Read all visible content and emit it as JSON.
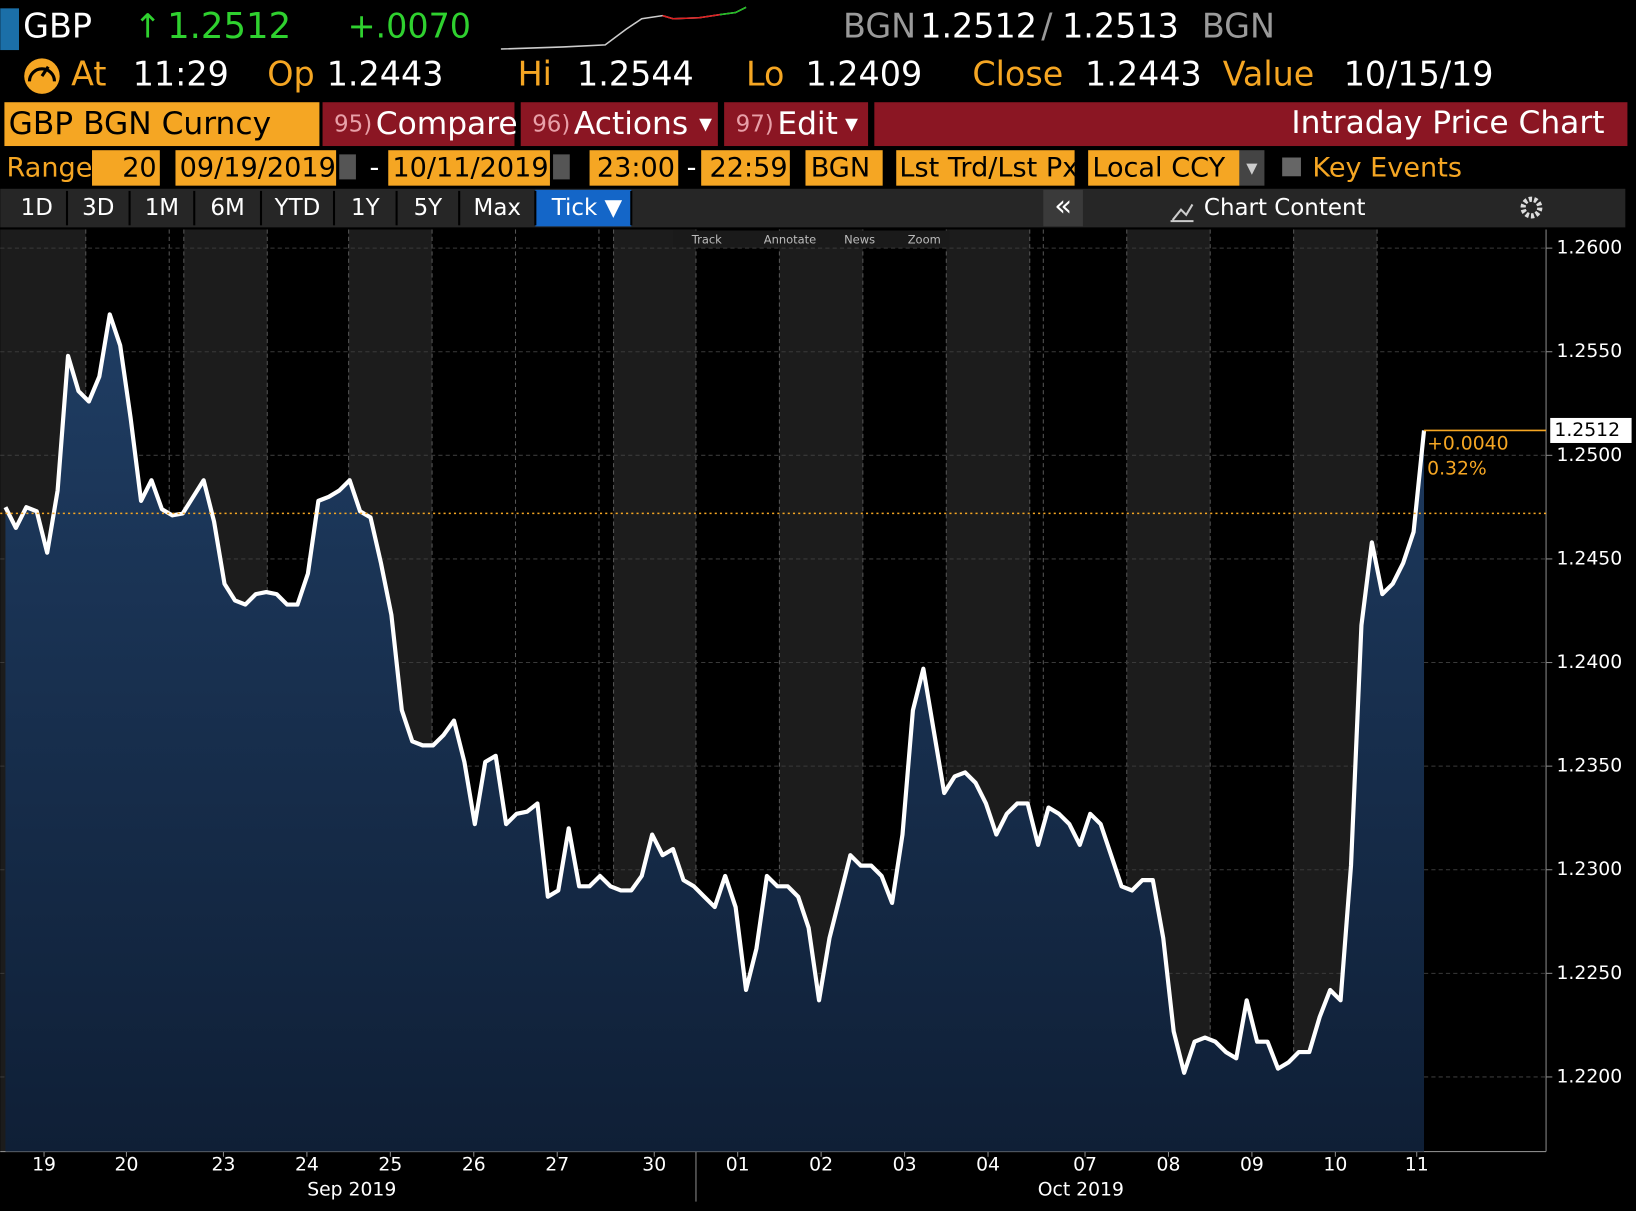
{
  "header": {
    "ticker": "GBP",
    "arrow": "↑",
    "last": "1.2512",
    "change": "+.0070",
    "bid_source": "BGN",
    "bid": "1.2512",
    "separator": "/",
    "ask": "1.2513",
    "ask_source": "BGN"
  },
  "quote": {
    "at_label": "At",
    "time": "11:29",
    "open_label": "Op",
    "open": "1.2443",
    "high_label": "Hi",
    "high": "1.2544",
    "low_label": "Lo",
    "low": "1.2409",
    "close_label": "Close",
    "close": "1.2443",
    "value_label": "Value",
    "value_date": "10/15/19"
  },
  "toolbar": {
    "security": "GBP BGN Curncy",
    "buttons": [
      {
        "number": "95)",
        "label": "Compare"
      },
      {
        "number": "96)",
        "label": "Actions"
      },
      {
        "number": "97)",
        "label": "Edit"
      }
    ],
    "title": "Intraday Price Chart"
  },
  "range": {
    "label": "Range",
    "days": "20",
    "start": "09/19/2019",
    "dash": "-",
    "end": "10/11/2019",
    "start_time": "23:00",
    "end_time": "22:59",
    "source": "BGN",
    "field": "Lst Trd/Lst Px",
    "currency": "Local CCY",
    "key_events": "Key Events"
  },
  "periods": [
    "1D",
    "3D",
    "1M",
    "6M",
    "YTD",
    "1Y",
    "5Y",
    "Max",
    "Tick ▼"
  ],
  "chart_menu": {
    "collapse": "«",
    "content": "Chart Content"
  },
  "tools": [
    "Track",
    "Annotate",
    "News",
    "Zoom"
  ],
  "chart_data": {
    "type": "line",
    "series": [
      {
        "name": "GBP BGN Curncy",
        "color": "#ffffff",
        "values": [
          1.2475,
          1.2465,
          1.2475,
          1.2473,
          1.2453,
          1.2483,
          1.2548,
          1.2531,
          1.2526,
          1.2538,
          1.2568,
          1.2553,
          1.2518,
          1.2478,
          1.2488,
          1.2474,
          1.2471,
          1.2472,
          1.248,
          1.2488,
          1.2468,
          1.2438,
          1.243,
          1.2428,
          1.2433,
          1.2434,
          1.2433,
          1.2428,
          1.2428,
          1.2443,
          1.2478,
          1.248,
          1.2483,
          1.2488,
          1.2473,
          1.247,
          1.2448,
          1.2423,
          1.2377,
          1.2362,
          1.236,
          1.236,
          1.2365,
          1.2372,
          1.2352,
          1.2322,
          1.2352,
          1.2355,
          1.2322,
          1.2327,
          1.2328,
          1.2332,
          1.2287,
          1.229,
          1.232,
          1.2292,
          1.2292,
          1.2297,
          1.2292,
          1.229,
          1.229,
          1.2297,
          1.2317,
          1.2307,
          1.231,
          1.2295,
          1.2292,
          1.2287,
          1.2282,
          1.2297,
          1.2282,
          1.2242,
          1.2262,
          1.2297,
          1.2292,
          1.2292,
          1.2287,
          1.2272,
          1.2237,
          1.2267,
          1.2287,
          1.2307,
          1.2302,
          1.2302,
          1.2297,
          1.2284,
          1.2317,
          1.2377,
          1.2397,
          1.2367,
          1.2337,
          1.2345,
          1.2347,
          1.2342,
          1.2332,
          1.2317,
          1.2327,
          1.2332,
          1.2332,
          1.2312,
          1.233,
          1.2327,
          1.2322,
          1.2312,
          1.2327,
          1.2322,
          1.2307,
          1.2292,
          1.229,
          1.2295,
          1.2295,
          1.2267,
          1.2222,
          1.2202,
          1.2217,
          1.2219,
          1.2217,
          1.2212,
          1.2209,
          1.2237,
          1.2217,
          1.2217,
          1.2204,
          1.2207,
          1.2212,
          1.2212,
          1.2229,
          1.2242,
          1.2237,
          1.2302,
          1.2418,
          1.2458,
          1.2433,
          1.2438,
          1.2448,
          1.2463,
          1.2512
        ]
      }
    ],
    "xlim": [
      -0.3,
      147.7
    ],
    "xticks": [
      {
        "value": 3.7,
        "label": "19"
      },
      {
        "value": 11.6,
        "label": "20"
      },
      {
        "value": 20.9,
        "label": "23"
      },
      {
        "value": 28.9,
        "label": "24"
      },
      {
        "value": 36.9,
        "label": "25"
      },
      {
        "value": 44.9,
        "label": "26"
      },
      {
        "value": 52.9,
        "label": "27"
      },
      {
        "value": 62.2,
        "label": "30"
      },
      {
        "value": 70.2,
        "label": "01"
      },
      {
        "value": 78.2,
        "label": "02"
      },
      {
        "value": 86.2,
        "label": "03"
      },
      {
        "value": 94.2,
        "label": "04"
      },
      {
        "value": 103.5,
        "label": "07"
      },
      {
        "value": 111.5,
        "label": "08"
      },
      {
        "value": 119.5,
        "label": "09"
      },
      {
        "value": 127.5,
        "label": "10"
      },
      {
        "value": 135.3,
        "label": "11"
      }
    ],
    "month_labels": [
      {
        "value": 33.2,
        "label": "Sep 2019"
      },
      {
        "value": 103.1,
        "label": "Oct 2019"
      }
    ],
    "ylim": [
      1.2164,
      1.2609
    ],
    "yticks": [
      {
        "value": 1.22,
        "label": "1.2200"
      },
      {
        "value": 1.225,
        "label": "1.2250"
      },
      {
        "value": 1.23,
        "label": "1.2300"
      },
      {
        "value": 1.235,
        "label": "1.2350"
      },
      {
        "value": 1.24,
        "label": "1.2400"
      },
      {
        "value": 1.245,
        "label": "1.2450"
      },
      {
        "value": 1.25,
        "label": "1.2500"
      },
      {
        "value": 1.255,
        "label": "1.2550"
      },
      {
        "value": 1.26,
        "label": "1.2600"
      }
    ],
    "reference_line": 1.2472,
    "last_price": 1.2512,
    "change_label": "+0.0040",
    "percent_label": "0.32%",
    "grid": true
  }
}
